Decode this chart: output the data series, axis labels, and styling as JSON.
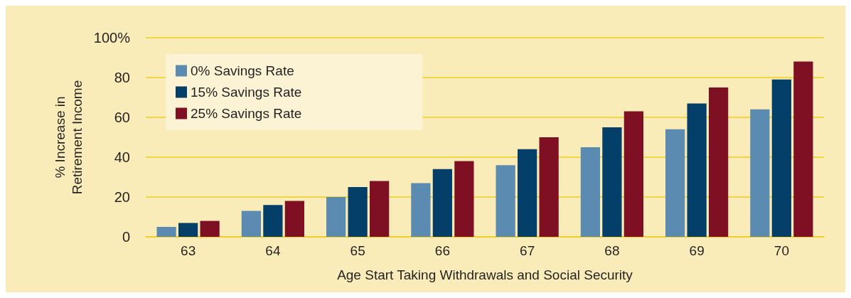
{
  "chart_data": {
    "type": "bar",
    "xlabel": "Age Start Taking Withdrawals and Social Security",
    "ylabel": "% Increase in\nRetirement Income",
    "categories": [
      "63",
      "64",
      "65",
      "66",
      "67",
      "68",
      "69",
      "70"
    ],
    "series": [
      {
        "name": "0% Savings Rate",
        "color": "#5b8bb0",
        "values": [
          5,
          13,
          20,
          27,
          36,
          45,
          54,
          64
        ]
      },
      {
        "name": "15% Savings Rate",
        "color": "#033f68",
        "values": [
          7,
          16,
          25,
          34,
          44,
          55,
          67,
          79
        ]
      },
      {
        "name": "25% Savings Rate",
        "color": "#7f1024",
        "values": [
          8,
          18,
          28,
          38,
          50,
          63,
          75,
          88
        ]
      }
    ],
    "ylim": [
      0,
      100
    ],
    "yticks": [
      0,
      20,
      40,
      60,
      80,
      {
        "value": 100,
        "label": "100%"
      }
    ],
    "grid": "y",
    "legend": "top left"
  }
}
